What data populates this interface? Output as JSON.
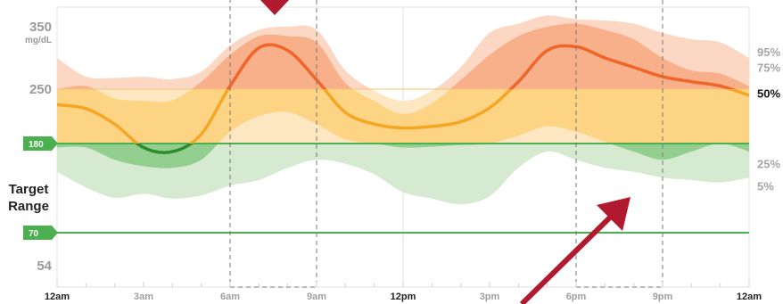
{
  "chart_data": {
    "type": "area",
    "y_axis": {
      "unit": "mg/dL",
      "labeled_ticks": [
        {
          "value": 350,
          "label": "350"
        },
        {
          "value": 250,
          "label": "250"
        },
        {
          "value": 54,
          "label": "54"
        }
      ],
      "ylim": [
        40,
        370
      ]
    },
    "target_range": {
      "label_lines": [
        "Target",
        "Range"
      ],
      "low": 70,
      "low_label": "70",
      "high": 180,
      "high_label": "180",
      "color": "#4caf50"
    },
    "x_axis": {
      "hours": [
        0,
        3,
        6,
        9,
        12,
        15,
        18,
        21,
        24
      ],
      "labels": [
        "12am",
        "3am",
        "6am",
        "9am",
        "12pm",
        "3pm",
        "6pm",
        "9pm",
        "12am"
      ],
      "bold": [
        true,
        false,
        false,
        false,
        true,
        false,
        false,
        false,
        true
      ]
    },
    "percentile_labels": [
      {
        "label": "95%",
        "value": 310,
        "bold": false
      },
      {
        "label": "75%",
        "value": 285,
        "bold": false
      },
      {
        "label": "50%",
        "value": 245,
        "bold": true
      },
      {
        "label": "25%",
        "value": 155,
        "bold": false
      },
      {
        "label": "5%",
        "value": 128,
        "bold": false
      }
    ],
    "hours": [
      0,
      1,
      2,
      3,
      4,
      5,
      6,
      7,
      8,
      9,
      10,
      11,
      12,
      13,
      14,
      15,
      16,
      17,
      18,
      19,
      20,
      21,
      22,
      23,
      24
    ],
    "p95": [
      300,
      270,
      268,
      270,
      266,
      278,
      320,
      345,
      350,
      345,
      280,
      248,
      235,
      248,
      285,
      340,
      355,
      368,
      362,
      360,
      355,
      340,
      330,
      325,
      300
    ],
    "p75": [
      250,
      255,
      238,
      235,
      236,
      262,
      305,
      335,
      335,
      325,
      260,
      235,
      218,
      232,
      265,
      305,
      335,
      350,
      355,
      345,
      330,
      300,
      280,
      275,
      255
    ],
    "p50": [
      230,
      225,
      205,
      175,
      170,
      192,
      255,
      316,
      312,
      265,
      220,
      205,
      200,
      202,
      208,
      226,
      262,
      312,
      318,
      300,
      285,
      270,
      262,
      255,
      242
    ],
    "p25": [
      175,
      175,
      160,
      152,
      150,
      160,
      195,
      215,
      220,
      205,
      185,
      180,
      175,
      176,
      178,
      180,
      190,
      202,
      195,
      182,
      170,
      160,
      170,
      180,
      170
    ],
    "p5": [
      145,
      126,
      113,
      118,
      112,
      116,
      128,
      135,
      150,
      160,
      155,
      142,
      120,
      112,
      105,
      115,
      150,
      170,
      160,
      150,
      145,
      138,
      135,
      132,
      138
    ],
    "highlighted_periods": [
      [
        6,
        9
      ],
      [
        18,
        21
      ]
    ],
    "colors": {
      "p95_above": "#fcd7c4",
      "p75_above": "#f8b08a",
      "median_above": "#f0652a",
      "p95_in_range": "#fde7c2",
      "p75_in_range": "#fdd384",
      "median_in_range": "#f5a623",
      "p5_below": "#d5ead0",
      "p25_below": "#92cf8e",
      "median_below": "#2e8b2e",
      "marker_arrow": "#b0192e"
    }
  }
}
